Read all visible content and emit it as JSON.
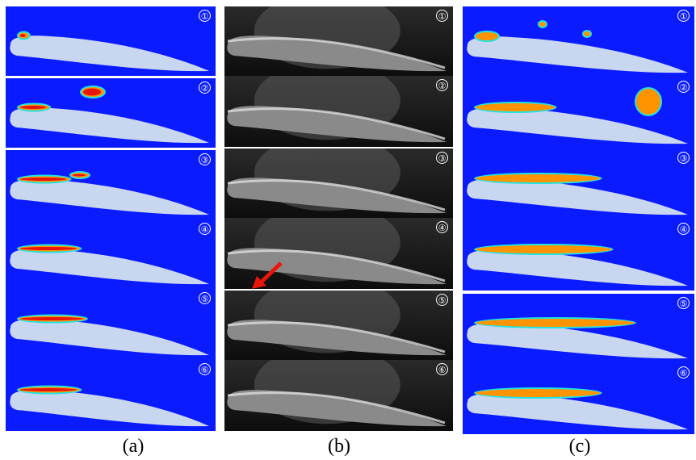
{
  "colors": {
    "background_blue": "#0a1cff",
    "airfoil": "#c9d6ef",
    "vapor_red": "#e8160a",
    "vapor_orange": "#ff9400",
    "vapor_yellow": "#ffe600",
    "vapor_cyan": "#22e3e0",
    "photo_dark": "#1a1a1a"
  },
  "columns": [
    {
      "key": "a",
      "caption": "(a)",
      "type": "simulation",
      "frames": [
        {
          "label": "①",
          "cavity_fraction": 0.05
        },
        {
          "label": "②",
          "cavity_fraction": 0.15
        },
        {
          "label": "③",
          "cavity_fraction": 0.25
        },
        {
          "label": "④",
          "cavity_fraction": 0.3
        },
        {
          "label": "⑤",
          "cavity_fraction": 0.33
        },
        {
          "label": "⑥",
          "cavity_fraction": 0.3
        }
      ]
    },
    {
      "key": "b",
      "caption": "(b)",
      "type": "photograph",
      "frames": [
        {
          "label": "①"
        },
        {
          "label": "②"
        },
        {
          "label": "③"
        },
        {
          "label": "④"
        },
        {
          "label": "⑤"
        },
        {
          "label": "⑥"
        }
      ]
    },
    {
      "key": "c",
      "caption": "(c)",
      "type": "simulation",
      "frames": [
        {
          "label": "①",
          "cavity_fraction": 0.1
        },
        {
          "label": "②",
          "cavity_fraction": 0.35
        },
        {
          "label": "③",
          "cavity_fraction": 0.55
        },
        {
          "label": "④",
          "cavity_fraction": 0.6
        },
        {
          "label": "⑤",
          "cavity_fraction": 0.7
        },
        {
          "label": "⑥",
          "cavity_fraction": 0.55
        }
      ]
    }
  ]
}
